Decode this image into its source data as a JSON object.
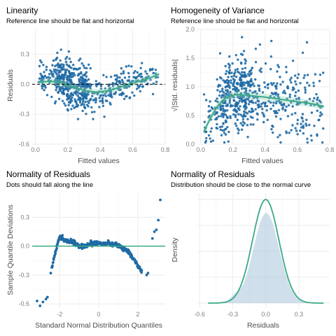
{
  "chart_data": [
    {
      "id": "linearity",
      "type": "scatter",
      "title": "Linearity",
      "subtitle": "Reference line should be flat and horizontal",
      "xlabel": "Fitted values",
      "ylabel": "Residuals",
      "xlim": [
        -0.02,
        0.8
      ],
      "ylim": [
        -0.6,
        0.55
      ],
      "xticks": [
        0.0,
        0.2,
        0.4,
        0.6,
        0.8
      ],
      "xtick_labels": [
        "0.0",
        "0.2",
        "0.4",
        "0.6",
        "0.8"
      ],
      "yticks": [
        -0.6,
        -0.3,
        0.0,
        0.3
      ],
      "ytick_labels": [
        "-0.6",
        "-0.3",
        "0.0",
        "0.3"
      ],
      "reference_line": 0.0,
      "smooth": {
        "x": [
          0.02,
          0.08,
          0.15,
          0.22,
          0.3,
          0.38,
          0.46,
          0.54,
          0.62,
          0.7,
          0.76
        ],
        "y": [
          0.02,
          0.03,
          0.02,
          -0.02,
          -0.06,
          -0.08,
          -0.06,
          -0.02,
          0.02,
          0.06,
          0.1
        ]
      },
      "n_points": 620,
      "point_color": "#1f6aa5",
      "line_color": "#3aaa85",
      "grid": true
    },
    {
      "id": "homogeneity",
      "type": "scatter",
      "title": "Homogeneity of Variance",
      "subtitle": "Reference line should be flat and horizontal",
      "xlabel": "Fitted values",
      "ylabel": "√|Std. residuals|",
      "xlim": [
        -0.02,
        0.8
      ],
      "ylim": [
        0.0,
        2.0
      ],
      "xticks": [
        0.0,
        0.2,
        0.4,
        0.6,
        0.8
      ],
      "xtick_labels": [
        "0.0",
        "0.2",
        "0.4",
        "0.6",
        "0.8"
      ],
      "yticks": [
        0.0,
        0.5,
        1.0,
        1.5,
        2.0
      ],
      "ytick_labels": [
        "0.0",
        "0.5",
        "1.0",
        "1.5",
        "2.0"
      ],
      "smooth": {
        "x": [
          0.02,
          0.06,
          0.1,
          0.15,
          0.22,
          0.3,
          0.4,
          0.5,
          0.6,
          0.7,
          0.76
        ],
        "y": [
          0.22,
          0.45,
          0.65,
          0.8,
          0.87,
          0.85,
          0.82,
          0.78,
          0.74,
          0.7,
          0.66
        ]
      },
      "n_points": 620,
      "point_color": "#1f6aa5",
      "line_color": "#3aaa85",
      "grid": true
    },
    {
      "id": "qq",
      "type": "scatter",
      "title": "Normality of Residuals",
      "subtitle": "Dots should fall along the line",
      "xlabel": "Standard Normal Distribution Quantiles",
      "ylabel": "Sample Quantile Deviations",
      "xlim": [
        -3.4,
        3.4
      ],
      "ylim": [
        -0.65,
        0.55
      ],
      "xticks": [
        -2,
        0,
        2
      ],
      "xtick_labels": [
        "-2",
        "0",
        "2"
      ],
      "yticks": [
        -0.6,
        -0.3,
        0.0,
        0.3
      ],
      "ytick_labels": [
        "-0.6",
        "-0.3",
        "0.0",
        "0.3"
      ],
      "reference_line": 0.0,
      "curve": {
        "x": [
          -2.4,
          -2.2,
          -2.0,
          -1.8,
          -1.5,
          -1.2,
          -1.0,
          -0.8,
          -0.5,
          -0.2,
          0.0,
          0.3,
          0.6,
          0.9,
          1.1,
          1.3,
          1.5,
          1.7,
          1.9,
          2.05,
          2.2
        ],
        "y": [
          -0.22,
          -0.05,
          0.1,
          0.07,
          0.05,
          0.03,
          0.0,
          -0.01,
          0.02,
          0.03,
          0.03,
          0.03,
          0.02,
          0.02,
          0.0,
          -0.03,
          -0.06,
          -0.11,
          -0.17,
          -0.22,
          -0.26
        ]
      },
      "outliers": [
        {
          "x": -3.15,
          "y": -0.57
        },
        {
          "x": -3.0,
          "y": -0.62
        },
        {
          "x": -2.85,
          "y": -0.58
        },
        {
          "x": -2.7,
          "y": -0.55
        },
        {
          "x": -2.62,
          "y": -0.53
        },
        {
          "x": -2.45,
          "y": -0.28
        },
        {
          "x": -2.38,
          "y": -0.22
        },
        {
          "x": 2.45,
          "y": -0.3
        },
        {
          "x": 2.52,
          "y": -0.28
        },
        {
          "x": 2.75,
          "y": 0.08
        },
        {
          "x": 2.85,
          "y": 0.15
        },
        {
          "x": 2.95,
          "y": 0.17
        },
        {
          "x": 3.05,
          "y": 0.27
        },
        {
          "x": 3.15,
          "y": 0.48
        }
      ],
      "point_color": "#1f6aa5",
      "line_color": "#3aaa85",
      "grid": true
    },
    {
      "id": "density",
      "type": "area",
      "title": "Normality of Residuals",
      "subtitle": "Distribution should be close to the normal curve",
      "xlabel": "Residuals",
      "ylabel": "Density",
      "xlim": [
        -0.62,
        0.58
      ],
      "xticks": [
        -0.6,
        -0.3,
        0.0,
        0.3
      ],
      "xtick_labels": [
        "-0.6",
        "-0.3",
        "0.0",
        "0.3"
      ],
      "normal_sd": 0.12,
      "density_fill": "#a9c4dc",
      "line_color": "#3aaa85",
      "grid": true
    }
  ]
}
